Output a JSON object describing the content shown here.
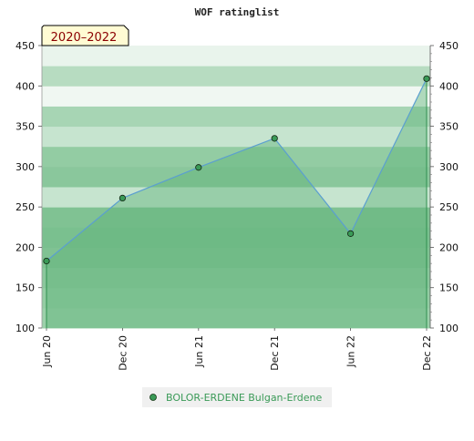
{
  "chart_data": {
    "type": "area",
    "title": "WOF ratinglist",
    "period_label": "2020–2022",
    "categories": [
      "Jun 20",
      "Dec 20",
      "Jun 21",
      "Dec 21",
      "Jun 22",
      "Dec 22"
    ],
    "series": [
      {
        "name": "BOLOR-ERDENE Bulgan-Erdene",
        "values": [
          183,
          261,
          299,
          335,
          217,
          409
        ]
      }
    ],
    "ylim": [
      100,
      450
    ],
    "yticks": [
      100,
      150,
      200,
      250,
      300,
      350,
      400,
      450
    ],
    "xlabel": "",
    "ylabel": "",
    "grid": true,
    "legend": "bottom-center",
    "colors": {
      "line": "#5b9fd0",
      "fill": "#5fb37a",
      "marker": "#3a9a57",
      "legend_text": "#3a9a57",
      "badge_bg": "#fffbd3",
      "badge_text": "#8b0000"
    }
  }
}
